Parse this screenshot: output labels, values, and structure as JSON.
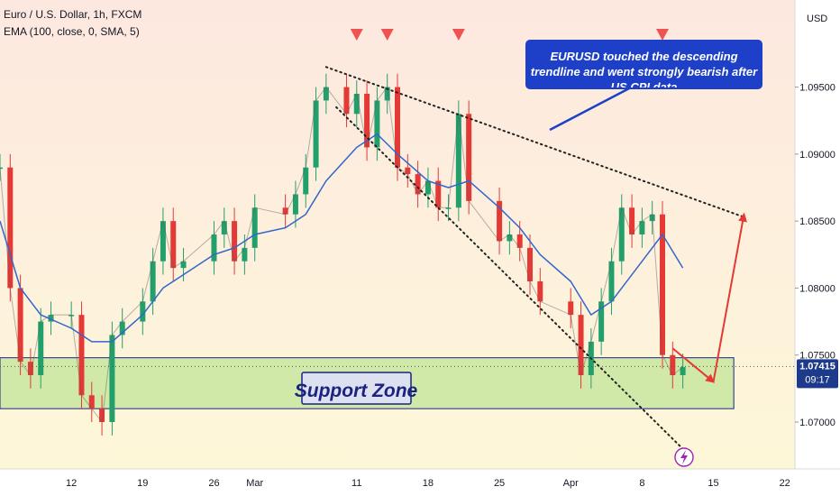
{
  "header": {
    "symbol_line": "Euro / U.S. Dollar, 1h, FXCM",
    "indicator_line": "EMA (100, close, 0, SMA, 5)",
    "currency": "USD"
  },
  "price_axis": {
    "ticks": [
      "1.09500",
      "1.09000",
      "1.08500",
      "1.08000",
      "1.07500",
      "1.07000"
    ],
    "current_price": "1.07415",
    "countdown": "09:17"
  },
  "time_axis": {
    "ticks": [
      "12",
      "19",
      "26",
      "Mar",
      "11",
      "18",
      "25",
      "Apr",
      "8",
      "15",
      "22"
    ]
  },
  "annotations": {
    "callout_text": "EURUSD touched the descending trendline and went strongly bearish after US CPI data",
    "support_label": "Support Zone"
  },
  "colors": {
    "background_top": "#fde8e0",
    "background_bottom": "#fdf8d8",
    "support_zone": "#c8e6a0",
    "callout_fill": "#1e40c8",
    "callout_text": "#ffffff",
    "support_label_fill": "#dde0f0",
    "support_label_text": "#1a237e",
    "arrow_red": "#e53935",
    "triangle_red": "#ef5350",
    "ema_line": "#3366cc",
    "candle_up": "#22a06b",
    "candle_down": "#e53935",
    "trendline": "#222222"
  },
  "icons": [
    "lightning-icon"
  ],
  "chart_data": {
    "type": "line",
    "title": "Euro / U.S. Dollar, 1h, FXCM",
    "yticks": [
      1.07,
      1.075,
      1.08,
      1.085,
      1.09,
      1.095
    ],
    "ylim": [
      1.0665,
      1.1015
    ],
    "xlim": [
      "2024-02-05",
      "2024-04-23"
    ],
    "xticks": [
      "2024-02-12",
      "2024-02-19",
      "2024-02-26",
      "2024-03-01",
      "2024-03-11",
      "2024-03-18",
      "2024-03-25",
      "2024-04-01",
      "2024-04-08",
      "2024-04-15",
      "2024-04-22"
    ],
    "current_price": 1.07415,
    "series": [
      {
        "name": "Euro / U.S. Dollar",
        "kind": "price",
        "x": [
          "2024-02-05",
          "2024-02-06",
          "2024-02-07",
          "2024-02-08",
          "2024-02-09",
          "2024-02-10",
          "2024-02-12",
          "2024-02-13",
          "2024-02-14",
          "2024-02-15",
          "2024-02-16",
          "2024-02-17",
          "2024-02-19",
          "2024-02-20",
          "2024-02-21",
          "2024-02-22",
          "2024-02-23",
          "2024-02-26",
          "2024-02-27",
          "2024-02-28",
          "2024-02-29",
          "2024-03-01",
          "2024-03-04",
          "2024-03-05",
          "2024-03-06",
          "2024-03-07",
          "2024-03-08",
          "2024-03-10",
          "2024-03-11",
          "2024-03-12",
          "2024-03-13",
          "2024-03-14",
          "2024-03-15",
          "2024-03-16",
          "2024-03-17",
          "2024-03-18",
          "2024-03-19",
          "2024-03-20",
          "2024-03-21",
          "2024-03-22",
          "2024-03-25",
          "2024-03-26",
          "2024-03-27",
          "2024-03-28",
          "2024-03-29",
          "2024-04-01",
          "2024-04-02",
          "2024-04-03",
          "2024-04-04",
          "2024-04-05",
          "2024-04-06",
          "2024-04-07",
          "2024-04-08",
          "2024-04-09",
          "2024-04-10",
          "2024-04-11",
          "2024-04-12"
        ],
        "y": [
          1.089,
          1.08,
          1.0745,
          1.0735,
          1.0775,
          1.078,
          1.078,
          1.072,
          1.071,
          1.07,
          1.0765,
          1.0775,
          1.079,
          1.082,
          1.085,
          1.0815,
          1.082,
          1.084,
          1.085,
          1.082,
          1.083,
          1.086,
          1.0855,
          1.087,
          1.089,
          1.094,
          1.095,
          1.093,
          1.0945,
          1.0905,
          1.094,
          1.095,
          1.089,
          1.0885,
          1.087,
          1.088,
          1.086,
          1.086,
          1.093,
          1.0865,
          1.0835,
          1.084,
          1.083,
          1.0805,
          1.079,
          1.078,
          1.0735,
          1.076,
          1.079,
          1.082,
          1.086,
          1.084,
          1.085,
          1.0855,
          1.075,
          1.0735,
          1.0741
        ]
      },
      {
        "name": "EMA (100, close, 0, SMA, 5)",
        "kind": "ema",
        "x": [
          "2024-02-05",
          "2024-02-07",
          "2024-02-09",
          "2024-02-12",
          "2024-02-14",
          "2024-02-16",
          "2024-02-19",
          "2024-02-21",
          "2024-02-23",
          "2024-02-26",
          "2024-02-28",
          "2024-03-01",
          "2024-03-04",
          "2024-03-06",
          "2024-03-08",
          "2024-03-11",
          "2024-03-13",
          "2024-03-15",
          "2024-03-18",
          "2024-03-20",
          "2024-03-22",
          "2024-03-25",
          "2024-03-27",
          "2024-03-29",
          "2024-04-01",
          "2024-04-03",
          "2024-04-05",
          "2024-04-08",
          "2024-04-10",
          "2024-04-12"
        ],
        "y": [
          1.085,
          1.08,
          1.078,
          1.077,
          1.076,
          1.076,
          1.078,
          1.08,
          1.081,
          1.0825,
          1.083,
          1.084,
          1.0845,
          1.0855,
          1.088,
          1.0905,
          1.0915,
          1.09,
          1.088,
          1.0875,
          1.088,
          1.086,
          1.0845,
          1.0825,
          1.0805,
          1.078,
          1.079,
          1.082,
          1.084,
          1.0815
        ]
      }
    ],
    "trendlines": [
      {
        "x": [
          "2024-03-08",
          "2024-04-18"
        ],
        "y": [
          1.0965,
          1.0853
        ],
        "style": "dotted"
      },
      {
        "x": [
          "2024-03-09",
          "2024-04-12"
        ],
        "y": [
          1.0935,
          1.068
        ],
        "style": "dotted"
      }
    ],
    "support_zone": {
      "ylow": 1.071,
      "yhigh": 1.0748,
      "x": [
        "2024-02-05",
        "2024-04-17"
      ]
    },
    "touch_markers": [
      "2024-03-11",
      "2024-03-14",
      "2024-03-21",
      "2024-04-10"
    ],
    "projection": {
      "x": [
        "2024-04-11",
        "2024-04-15",
        "2024-04-18"
      ],
      "y": [
        1.0755,
        1.073,
        1.0855
      ]
    }
  }
}
